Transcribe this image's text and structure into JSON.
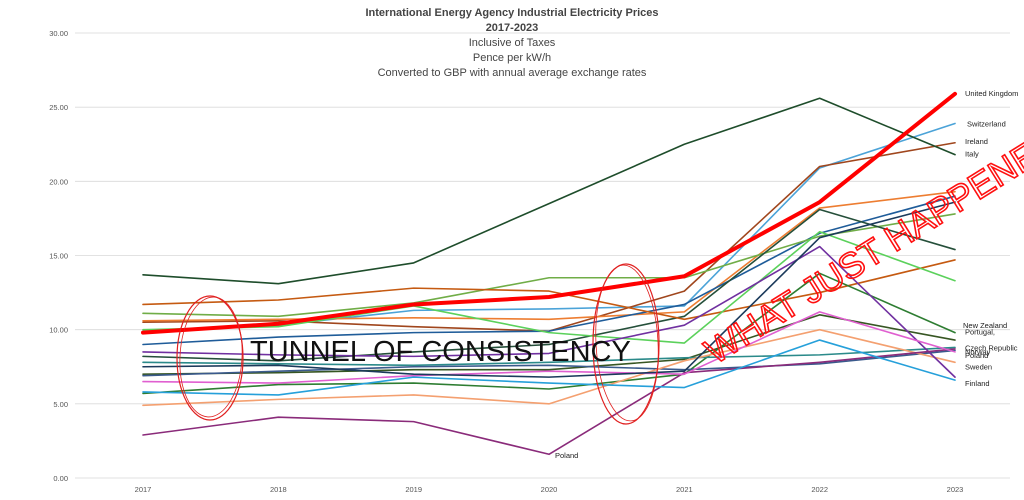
{
  "chart_data": {
    "type": "line",
    "title": "International Energy Agency  Industrial Electricity Prices",
    "subtitle_lines": [
      "2017-2023",
      "Inclusive of Taxes",
      "Pence per kW/h",
      "Converted to GBP with annual average exchange rates"
    ],
    "xlabel": "",
    "ylabel": "",
    "x": [
      "2017",
      "2018",
      "2019",
      "2020",
      "2021",
      "2022",
      "2023"
    ],
    "ylim": [
      0,
      30
    ],
    "yticks": [
      "0.00",
      "5.00",
      "10.00",
      "15.00",
      "20.00",
      "25.00",
      "30.00"
    ],
    "grid": true,
    "series": [
      {
        "name": "United Kingdom",
        "color": "#ff0000",
        "width": 4,
        "values": [
          9.8,
          10.4,
          11.7,
          12.2,
          13.6,
          18.6,
          25.9
        ]
      },
      {
        "name": "Switzerland",
        "color": "#4ba3d8",
        "width": 1.6,
        "values": [
          9.9,
          10.3,
          11.3,
          11.4,
          11.6,
          20.9,
          23.9
        ]
      },
      {
        "name": "Ireland",
        "color": "#a0461d",
        "width": 1.6,
        "values": [
          10.5,
          10.6,
          10.2,
          9.9,
          12.6,
          21.0,
          22.6
        ]
      },
      {
        "name": "Italy",
        "color": "#1e4d2b",
        "width": 1.6,
        "values": [
          13.7,
          13.1,
          14.5,
          18.5,
          22.5,
          25.6,
          21.8
        ]
      },
      {
        "color": "#ed7d31",
        "width": 1.6,
        "values": [
          10.6,
          10.7,
          10.8,
          10.7,
          11.2,
          18.2,
          19.3
        ]
      },
      {
        "color": "#1f5c99",
        "width": 1.6,
        "values": [
          9.0,
          9.5,
          9.8,
          9.9,
          11.7,
          16.5,
          19.0
        ]
      },
      {
        "color": "#70ad47",
        "width": 1.6,
        "values": [
          11.1,
          10.9,
          11.8,
          13.5,
          13.5,
          16.3,
          17.8
        ]
      },
      {
        "color": "#254f3a",
        "width": 1.6,
        "values": [
          8.2,
          7.9,
          8.5,
          9.0,
          10.9,
          18.1,
          15.4
        ]
      },
      {
        "color": "#c55a11",
        "width": 1.6,
        "values": [
          11.7,
          12.0,
          12.8,
          12.6,
          10.7,
          12.5,
          14.7
        ]
      },
      {
        "color": "#5bd15b",
        "width": 1.6,
        "values": [
          10.0,
          10.2,
          11.6,
          9.8,
          9.1,
          16.6,
          13.3
        ]
      },
      {
        "name": "New Zealand",
        "color": "#375623",
        "width": 1.6,
        "values": [
          7.0,
          7.1,
          7.3,
          7.3,
          8.0,
          11.0,
          9.3
        ]
      },
      {
        "name": "Portugal,",
        "color": "#2e7d32",
        "width": 1.6,
        "values": [
          5.7,
          6.3,
          6.4,
          6.0,
          7.0,
          13.8,
          9.8
        ]
      },
      {
        "name": "Czech Republic",
        "color": "#2b8a8a",
        "width": 1.6,
        "values": [
          7.8,
          7.7,
          7.6,
          7.8,
          8.1,
          8.3,
          8.8
        ]
      },
      {
        "name": "Norway",
        "color": "#3a5a8c",
        "width": 1.6,
        "values": [
          6.9,
          7.2,
          7.5,
          7.6,
          7.3,
          7.7,
          8.6
        ]
      },
      {
        "name": "Sweden",
        "color": "#f4a070",
        "width": 1.6,
        "values": [
          4.9,
          5.3,
          5.6,
          5.0,
          7.9,
          10.0,
          7.8
        ]
      },
      {
        "name": "Finland",
        "color": "#7030a0",
        "width": 1.6,
        "values": [
          8.5,
          8.3,
          8.2,
          8.4,
          10.3,
          15.6,
          6.8
        ]
      },
      {
        "name": "Poland",
        "color": "#8a2b7a",
        "width": 1.6,
        "values": [
          2.9,
          4.1,
          3.8,
          1.6,
          7.1,
          7.8,
          8.7
        ]
      },
      {
        "color": "#e05fd0",
        "width": 1.6,
        "values": [
          6.5,
          6.4,
          6.9,
          7.2,
          7.0,
          11.2,
          8.5
        ]
      },
      {
        "color": "#26a0da",
        "width": 1.6,
        "values": [
          5.8,
          5.6,
          6.8,
          6.4,
          6.1,
          9.3,
          6.6
        ]
      },
      {
        "color": "#1b3a5b",
        "width": 1.6,
        "values": [
          7.5,
          7.6,
          7.0,
          6.8,
          7.2,
          16.2,
          18.6
        ]
      }
    ],
    "annotations": {
      "tunnel_label": "TUNNEL OF CONSISTENCY",
      "what_label": "WHAT JUST HAPPENED?",
      "poland_inline_label": "Poland"
    }
  }
}
